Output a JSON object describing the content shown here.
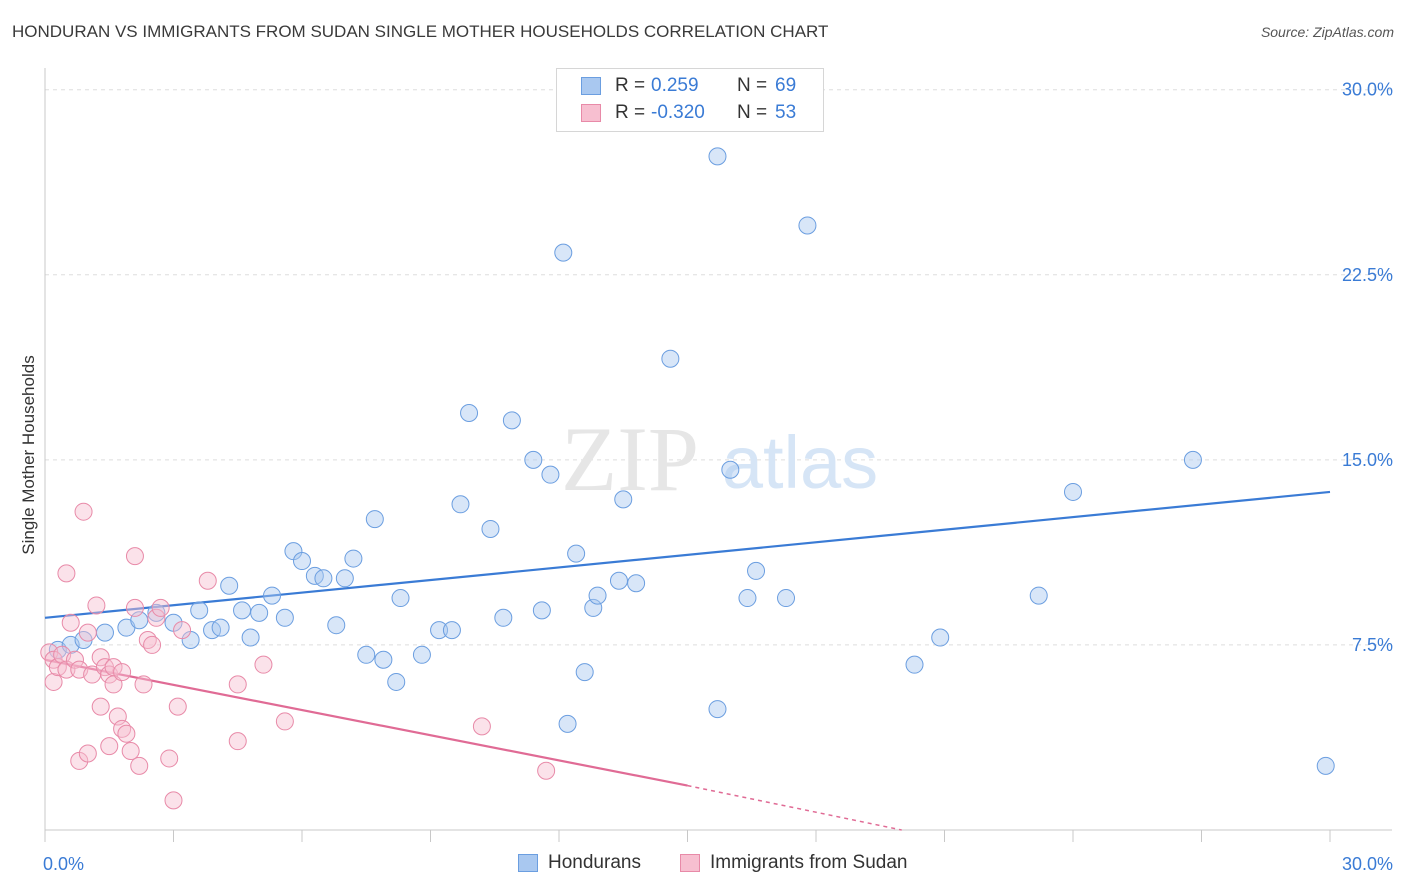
{
  "title": "HONDURAN VS IMMIGRANTS FROM SUDAN SINGLE MOTHER HOUSEHOLDS CORRELATION CHART",
  "source": "Source: ZipAtlas.com",
  "watermark": {
    "zip": "ZIP",
    "atlas": "atlas"
  },
  "legend_top": [
    {
      "r_label": "R =",
      "r_value": "0.259",
      "n_label": "N =",
      "n_value": "69",
      "color": "#a9c8f0",
      "border": "#6b9ee0"
    },
    {
      "r_label": "R =",
      "r_value": "-0.320",
      "n_label": "N =",
      "n_value": "53",
      "color": "#f7bfd0",
      "border": "#e88aa8"
    }
  ],
  "legend_bottom": [
    {
      "label": "Hondurans",
      "color": "#a9c8f0",
      "border": "#6b9ee0"
    },
    {
      "label": "Immigrants from Sudan",
      "color": "#f7bfd0",
      "border": "#e88aa8"
    }
  ],
  "chart_data": {
    "type": "scatter",
    "title": "HONDURAN VS IMMIGRANTS FROM SUDAN SINGLE MOTHER HOUSEHOLDS CORRELATION CHART",
    "xlabel": "",
    "ylabel": "Single Mother Households",
    "xlim": [
      0,
      30
    ],
    "ylim": [
      0,
      30.8
    ],
    "x_tick_labels": [
      "0.0%",
      "30.0%"
    ],
    "y_ticks": [
      7.5,
      15.0,
      22.5,
      30.0
    ],
    "y_tick_labels": [
      "7.5%",
      "15.0%",
      "22.5%",
      "30.0%"
    ],
    "grid": true,
    "legend_position": "top-center",
    "colors": {
      "hondurans": "#3a7bd5",
      "sudan": "#e06b95"
    },
    "series": [
      {
        "name": "Hondurans",
        "trend": {
          "x": [
            0.0,
            30.0
          ],
          "y": [
            8.6,
            13.7
          ]
        },
        "points": [
          [
            0.3,
            7.3
          ],
          [
            0.6,
            7.5
          ],
          [
            0.9,
            7.7
          ],
          [
            1.4,
            8.0
          ],
          [
            1.9,
            8.2
          ],
          [
            2.2,
            8.5
          ],
          [
            2.6,
            8.8
          ],
          [
            3.0,
            8.4
          ],
          [
            3.4,
            7.7
          ],
          [
            3.6,
            8.9
          ],
          [
            3.9,
            8.1
          ],
          [
            4.1,
            8.2
          ],
          [
            4.3,
            9.9
          ],
          [
            4.6,
            8.9
          ],
          [
            4.8,
            7.8
          ],
          [
            5.0,
            8.8
          ],
          [
            5.3,
            9.5
          ],
          [
            5.6,
            8.6
          ],
          [
            5.8,
            11.3
          ],
          [
            6.0,
            10.9
          ],
          [
            6.3,
            10.3
          ],
          [
            6.5,
            10.2
          ],
          [
            6.8,
            8.3
          ],
          [
            7.0,
            10.2
          ],
          [
            7.2,
            11.0
          ],
          [
            7.5,
            7.1
          ],
          [
            7.7,
            12.6
          ],
          [
            7.9,
            6.9
          ],
          [
            8.2,
            6.0
          ],
          [
            8.3,
            9.4
          ],
          [
            8.8,
            7.1
          ],
          [
            9.2,
            8.1
          ],
          [
            9.5,
            8.1
          ],
          [
            9.7,
            13.2
          ],
          [
            9.9,
            16.9
          ],
          [
            10.4,
            12.2
          ],
          [
            10.7,
            8.6
          ],
          [
            10.9,
            16.6
          ],
          [
            11.4,
            15.0
          ],
          [
            11.6,
            8.9
          ],
          [
            11.8,
            14.4
          ],
          [
            12.1,
            23.4
          ],
          [
            12.2,
            4.3
          ],
          [
            12.4,
            11.2
          ],
          [
            12.6,
            6.4
          ],
          [
            12.8,
            9.0
          ],
          [
            12.9,
            9.5
          ],
          [
            13.4,
            10.1
          ],
          [
            13.5,
            13.4
          ],
          [
            13.8,
            10.0
          ],
          [
            14.6,
            19.1
          ],
          [
            15.7,
            27.3
          ],
          [
            15.7,
            4.9
          ],
          [
            16.0,
            14.6
          ],
          [
            16.4,
            9.4
          ],
          [
            16.6,
            10.5
          ],
          [
            17.3,
            9.4
          ],
          [
            17.8,
            24.5
          ],
          [
            20.3,
            6.7
          ],
          [
            20.9,
            7.8
          ],
          [
            23.2,
            9.5
          ],
          [
            24.0,
            13.7
          ],
          [
            26.8,
            15.0
          ],
          [
            29.9,
            2.6
          ]
        ]
      },
      {
        "name": "Immigrants from Sudan",
        "trend": {
          "x": [
            0.0,
            15.0
          ],
          "y": [
            6.9,
            1.8
          ]
        },
        "trend_dashed": {
          "x": [
            15.0,
            20.0
          ],
          "y": [
            1.8,
            0.0
          ]
        },
        "points": [
          [
            0.1,
            7.2
          ],
          [
            0.2,
            6.9
          ],
          [
            0.2,
            6.0
          ],
          [
            0.3,
            6.6
          ],
          [
            0.4,
            7.1
          ],
          [
            0.5,
            6.5
          ],
          [
            0.5,
            10.4
          ],
          [
            0.6,
            8.4
          ],
          [
            0.7,
            6.9
          ],
          [
            0.8,
            2.8
          ],
          [
            0.8,
            6.5
          ],
          [
            0.9,
            12.9
          ],
          [
            1.0,
            8.0
          ],
          [
            1.0,
            3.1
          ],
          [
            1.1,
            6.3
          ],
          [
            1.2,
            9.1
          ],
          [
            1.3,
            7.0
          ],
          [
            1.3,
            5.0
          ],
          [
            1.4,
            6.6
          ],
          [
            1.5,
            6.3
          ],
          [
            1.5,
            3.4
          ],
          [
            1.6,
            5.9
          ],
          [
            1.6,
            6.6
          ],
          [
            1.7,
            4.6
          ],
          [
            1.8,
            4.1
          ],
          [
            1.8,
            6.4
          ],
          [
            1.9,
            3.9
          ],
          [
            2.0,
            3.2
          ],
          [
            2.1,
            11.1
          ],
          [
            2.1,
            9.0
          ],
          [
            2.2,
            2.6
          ],
          [
            2.3,
            5.9
          ],
          [
            2.4,
            7.7
          ],
          [
            2.5,
            7.5
          ],
          [
            2.6,
            8.6
          ],
          [
            2.7,
            9.0
          ],
          [
            2.9,
            2.9
          ],
          [
            3.0,
            1.2
          ],
          [
            3.1,
            5.0
          ],
          [
            3.2,
            8.1
          ],
          [
            3.8,
            10.1
          ],
          [
            4.5,
            5.9
          ],
          [
            4.5,
            3.6
          ],
          [
            5.1,
            6.7
          ],
          [
            5.6,
            4.4
          ],
          [
            10.2,
            4.2
          ],
          [
            11.7,
            2.4
          ]
        ]
      }
    ]
  }
}
